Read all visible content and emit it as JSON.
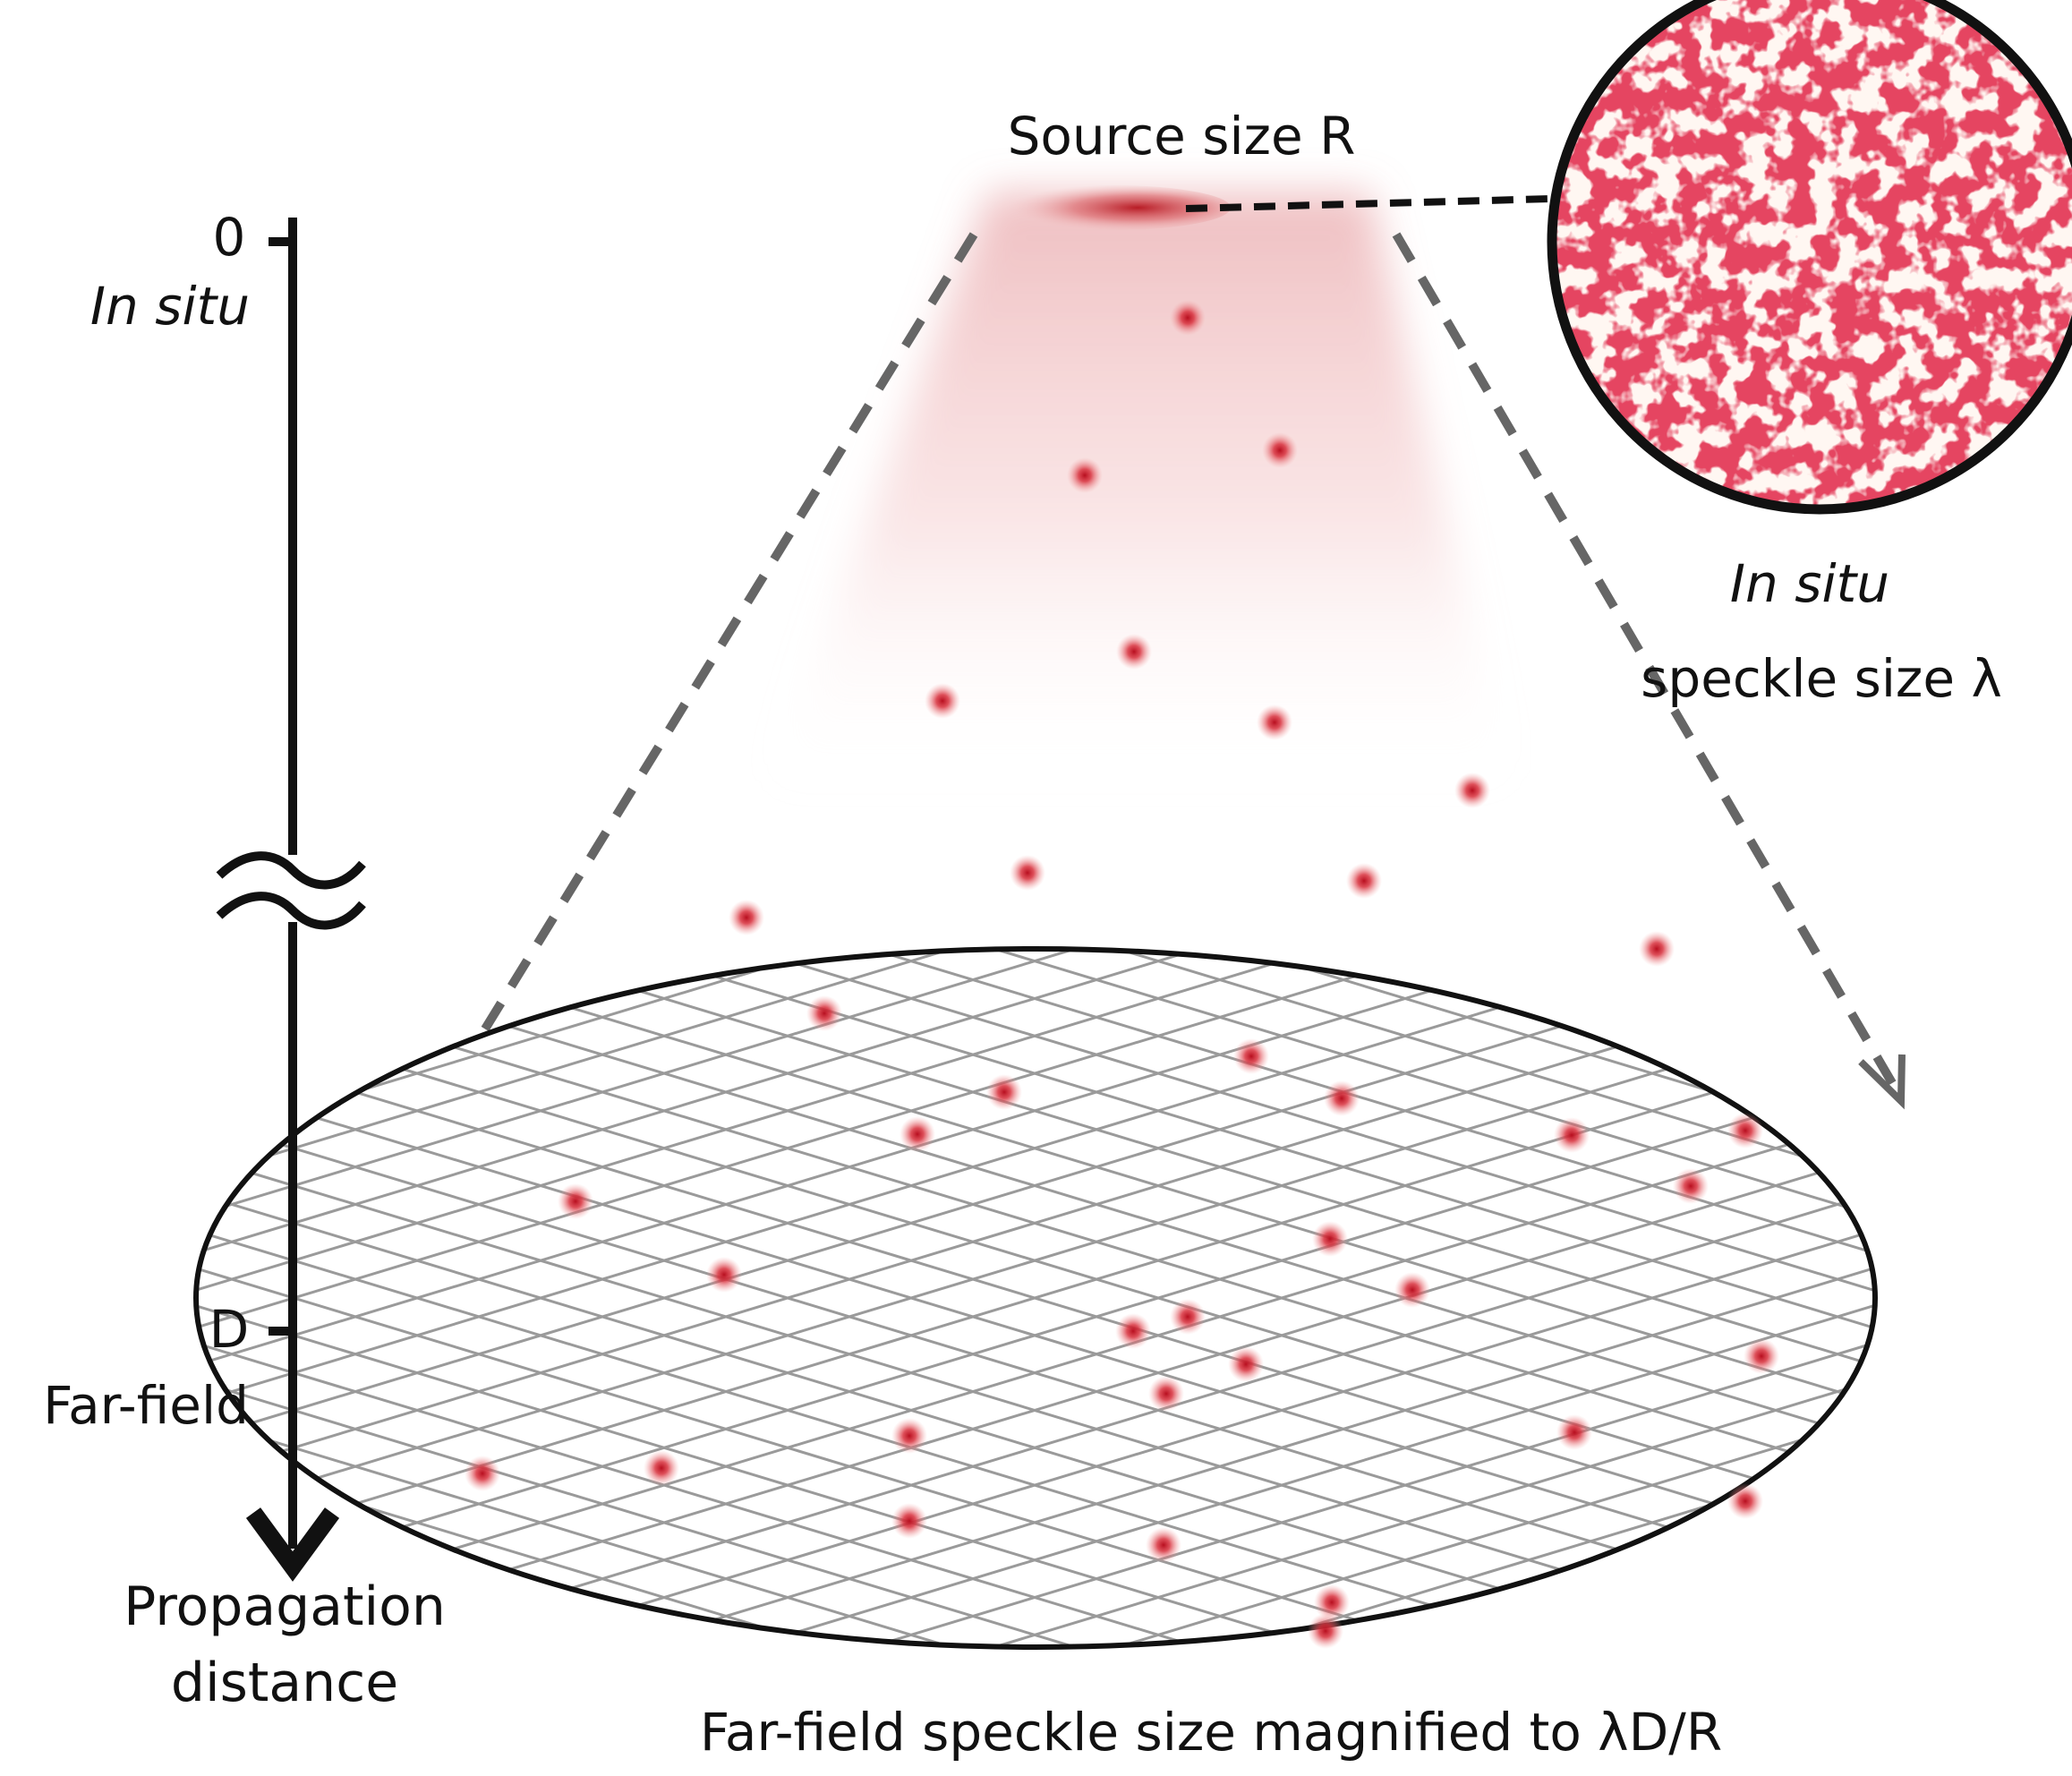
{
  "axis": {
    "tick_top_value": "0",
    "tick_top_caption": "In situ",
    "tick_bottom_value": "D",
    "tick_bottom_caption": "Far-field",
    "axis_title_line1": "Propagation",
    "axis_title_line2": "distance"
  },
  "labels": {
    "source": "Source size R",
    "inset_line1": "In situ",
    "inset_line2": "speckle size λ",
    "far_field": "Far-field speckle size magnified to λD/R"
  },
  "colors": {
    "speckle": "#c8102e",
    "dashed_line": "#666666",
    "grid": "#9a9a9a",
    "outline": "#111111"
  }
}
